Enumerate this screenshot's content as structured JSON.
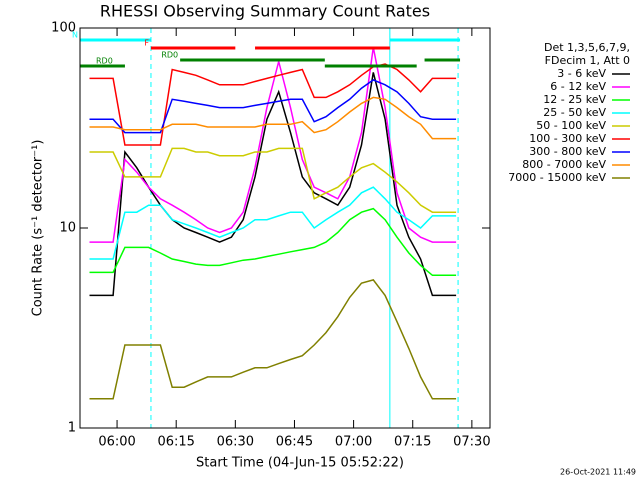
{
  "chart_data": {
    "type": "line",
    "title": "RHESSI Observing Summary Count Rates",
    "x_label": "Start Time (04-Jun-15 05:52:22)",
    "y_label": "Count Rate (s⁻¹ detector⁻¹)",
    "legend_header": [
      "Det 1,3,5,6,7,9,",
      "FDecim 1, Att 0"
    ],
    "footer": "26-Oct-2021 11:49",
    "log_y": true,
    "xlim": [
      350.6,
      454.6
    ],
    "ylim": [
      1,
      100
    ],
    "xticks": [
      {
        "value": 360,
        "label": "06:00"
      },
      {
        "value": 375,
        "label": "06:15"
      },
      {
        "value": 390,
        "label": "06:30"
      },
      {
        "value": 405,
        "label": "06:45"
      },
      {
        "value": 420,
        "label": "07:00"
      },
      {
        "value": 435,
        "label": "07:15"
      },
      {
        "value": 450,
        "label": "07:30"
      }
    ],
    "yticks": [
      1,
      10,
      100
    ],
    "x": [
      353,
      356,
      359,
      362,
      365,
      368,
      371,
      374,
      377,
      380,
      383,
      386,
      389,
      392,
      395,
      398,
      401,
      404,
      407,
      410,
      413,
      416,
      419,
      422,
      425,
      428,
      431,
      434,
      437,
      440,
      443,
      446,
      449,
      452
    ],
    "series": [
      {
        "name": "3 - 6 keV",
        "color": "#000000",
        "values": [
          4.6,
          4.6,
          4.6,
          24,
          20,
          16,
          13,
          11,
          10,
          9.5,
          9,
          8.5,
          9,
          11,
          18,
          35,
          48,
          30,
          18,
          15,
          14,
          13,
          16,
          26,
          60,
          35,
          13,
          9,
          7,
          4.6,
          4.6,
          4.6,
          null,
          null
        ]
      },
      {
        "name": "6 - 12 keV",
        "color": "#ff00ff",
        "values": [
          8.5,
          8.5,
          8.5,
          22,
          19,
          16,
          14,
          13,
          12,
          11,
          10,
          9.5,
          10,
          12,
          20,
          40,
          68,
          40,
          22,
          16,
          15,
          14,
          18,
          30,
          80,
          40,
          15,
          10,
          9,
          8.5,
          8.5,
          8.5,
          null,
          null
        ]
      },
      {
        "name": "12 - 25 keV",
        "color": "#00ff00",
        "values": [
          6,
          6,
          6,
          8,
          8,
          8,
          7.5,
          7,
          6.8,
          6.6,
          6.5,
          6.5,
          6.7,
          6.9,
          7,
          7.2,
          7.4,
          7.6,
          7.8,
          8,
          8.5,
          9.5,
          11,
          12,
          12.5,
          11,
          9,
          7.5,
          6.5,
          5.8,
          5.8,
          5.8,
          null,
          null
        ]
      },
      {
        "name": "25 - 50 keV",
        "color": "#00ffff",
        "values": [
          7,
          7,
          7,
          12,
          12,
          13,
          13,
          11,
          10.5,
          10,
          9.5,
          9,
          9.5,
          10,
          11,
          11,
          11.5,
          12,
          12,
          10,
          11,
          12,
          13,
          15,
          16,
          14,
          12,
          11,
          10,
          11.5,
          11.5,
          11.5,
          null,
          null
        ]
      },
      {
        "name": "50 - 100 keV",
        "color": "#cccc00",
        "values": [
          24,
          24,
          24,
          18,
          18,
          18,
          18,
          25,
          25,
          24,
          24,
          23,
          23,
          23,
          24,
          24,
          25,
          25,
          25,
          14,
          15,
          16,
          18,
          20,
          21,
          19,
          17,
          15,
          13,
          12,
          12,
          12,
          null,
          null
        ]
      },
      {
        "name": "100 - 300 keV",
        "color": "#ff0000",
        "values": [
          56,
          56,
          56,
          26,
          26,
          26,
          26,
          62,
          60,
          58,
          55,
          52,
          52,
          52,
          54,
          56,
          58,
          60,
          62,
          45,
          45,
          48,
          52,
          58,
          64,
          66,
          62,
          55,
          48,
          56,
          56,
          56,
          null,
          null
        ]
      },
      {
        "name": "300 - 800 keV",
        "color": "#0000ff",
        "values": [
          35,
          35,
          35,
          30,
          30,
          30,
          30,
          44,
          43,
          42,
          41,
          40,
          40,
          40,
          41,
          42,
          43,
          44,
          44,
          34,
          36,
          40,
          44,
          50,
          55,
          52,
          48,
          42,
          36,
          35,
          35,
          35,
          null,
          null
        ]
      },
      {
        "name": "800 - 7000 keV",
        "color": "#ff8c00",
        "values": [
          32,
          32,
          32,
          31,
          31,
          31,
          31,
          33,
          33,
          33,
          32,
          32,
          32,
          32,
          32,
          33,
          33,
          33,
          34,
          30,
          31,
          34,
          38,
          42,
          45,
          44,
          40,
          36,
          33,
          28,
          28,
          28,
          null,
          null
        ]
      },
      {
        "name": "7000 - 15000 keV",
        "color": "#808000",
        "values": [
          1.4,
          1.4,
          1.4,
          2.6,
          2.6,
          2.6,
          2.6,
          1.6,
          1.6,
          1.7,
          1.8,
          1.8,
          1.8,
          1.9,
          2,
          2,
          2.1,
          2.2,
          2.3,
          2.6,
          3,
          3.6,
          4.5,
          5.3,
          5.5,
          4.6,
          3.4,
          2.5,
          1.8,
          1.4,
          1.4,
          1.4,
          null,
          null
        ]
      }
    ],
    "status_bars": [
      {
        "label": "N",
        "color": "#00ffff",
        "ranges": [
          [
            350.6,
            368.6
          ],
          [
            429.2,
            447
          ]
        ]
      },
      {
        "label": "F",
        "color": "#ff0000",
        "ranges": [
          [
            368.6,
            390
          ],
          [
            395,
            429.2
          ]
        ]
      },
      {
        "label": "RD0",
        "color": "#008000",
        "ranges": [
          [
            376,
            412.7
          ],
          [
            438,
            447
          ]
        ]
      },
      {
        "label": "RD0",
        "color": "#008000",
        "ranges": [
          [
            350.6,
            362
          ],
          [
            412.7,
            436
          ]
        ]
      }
    ],
    "vlines": [
      {
        "x": 350.6,
        "dashed": false,
        "color": "#00ffff"
      },
      {
        "x": 368.6,
        "dashed": true,
        "color": "#00ffff"
      },
      {
        "x": 429.2,
        "dashed": false,
        "color": "#00ffff"
      },
      {
        "x": 446.5,
        "dashed": true,
        "color": "#00ffff"
      }
    ]
  }
}
